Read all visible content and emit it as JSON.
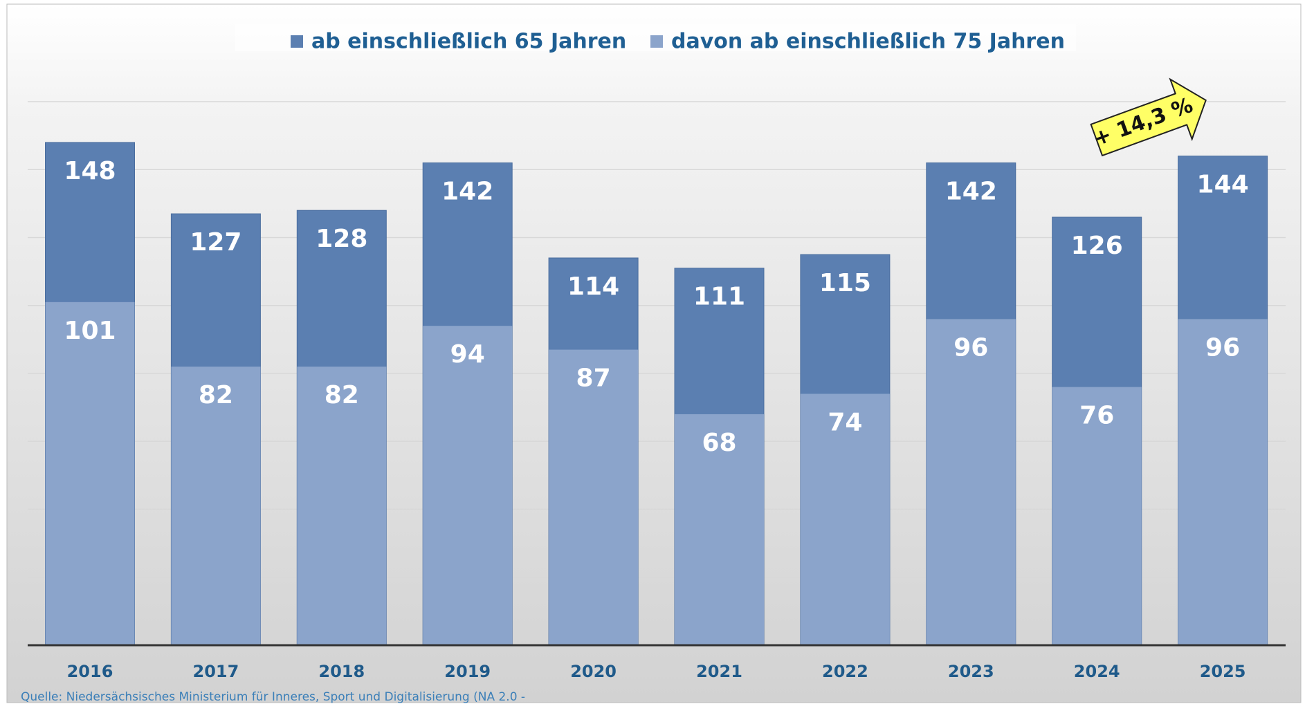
{
  "chart_data": {
    "type": "bar",
    "overlap": true,
    "categories": [
      "2016",
      "2017",
      "2018",
      "2019",
      "2020",
      "2021",
      "2022",
      "2023",
      "2024",
      "2025"
    ],
    "series": [
      {
        "name": "ab einschließlich 65 Jahren",
        "color": "#5b7fb1",
        "values": [
          148,
          127,
          128,
          142,
          114,
          111,
          115,
          142,
          126,
          144
        ]
      },
      {
        "name": "davon ab einschließlich 75 Jahren",
        "color": "#8ba4cb",
        "values": [
          101,
          82,
          82,
          94,
          87,
          68,
          74,
          96,
          76,
          96
        ]
      }
    ],
    "ylim": [
      0,
      160
    ],
    "yticks": [
      0,
      20,
      40,
      60,
      80,
      100,
      120,
      140,
      160
    ],
    "grid": true,
    "annotation": "+ 14,3 %",
    "source": "Quelle: Niedersächsisches Ministerium für Inneres, Sport und Digitalisierung (NA 2.0 -"
  }
}
